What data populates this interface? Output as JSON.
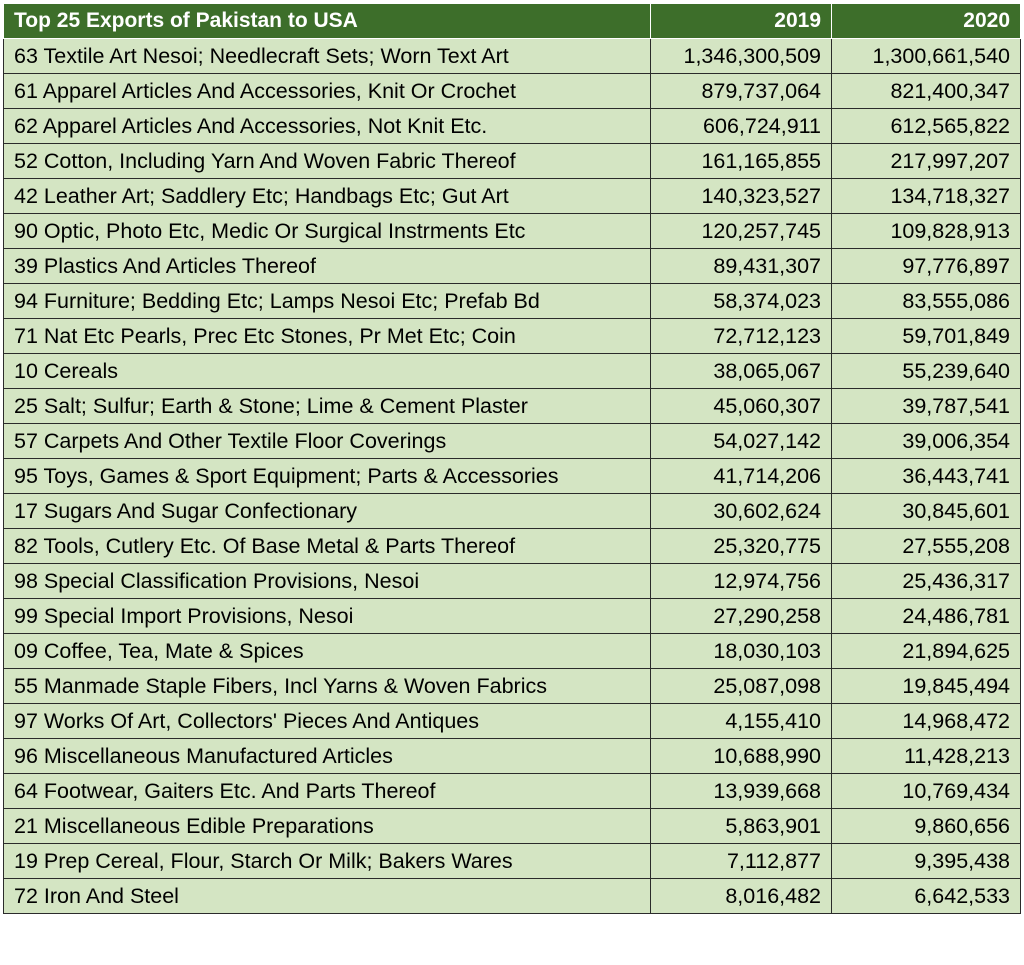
{
  "chart_data": {
    "type": "table",
    "title": "Top 25 Exports of Pakistan to USA",
    "columns": [
      "2019",
      "2020"
    ],
    "rows": [
      {
        "label": "63 Textile Art Nesoi; Needlecraft Sets; Worn Text Art",
        "v2019": "1,346,300,509",
        "v2020": "1,300,661,540"
      },
      {
        "label": "61 Apparel Articles And Accessories, Knit Or Crochet",
        "v2019": "879,737,064",
        "v2020": "821,400,347"
      },
      {
        "label": "62 Apparel Articles And Accessories, Not Knit Etc.",
        "v2019": "606,724,911",
        "v2020": "612,565,822"
      },
      {
        "label": "52 Cotton, Including Yarn And Woven Fabric Thereof",
        "v2019": "161,165,855",
        "v2020": "217,997,207"
      },
      {
        "label": "42 Leather Art; Saddlery Etc; Handbags Etc; Gut Art",
        "v2019": "140,323,527",
        "v2020": "134,718,327"
      },
      {
        "label": "90 Optic, Photo Etc, Medic Or Surgical Instrments Etc",
        "v2019": "120,257,745",
        "v2020": "109,828,913"
      },
      {
        "label": "39 Plastics And Articles Thereof",
        "v2019": "89,431,307",
        "v2020": "97,776,897"
      },
      {
        "label": "94 Furniture; Bedding Etc; Lamps Nesoi Etc; Prefab Bd",
        "v2019": "58,374,023",
        "v2020": "83,555,086"
      },
      {
        "label": "71 Nat Etc Pearls, Prec Etc Stones, Pr Met Etc; Coin",
        "v2019": "72,712,123",
        "v2020": "59,701,849"
      },
      {
        "label": "10 Cereals",
        "v2019": "38,065,067",
        "v2020": "55,239,640"
      },
      {
        "label": "25 Salt; Sulfur; Earth & Stone; Lime & Cement Plaster",
        "v2019": "45,060,307",
        "v2020": "39,787,541"
      },
      {
        "label": "57 Carpets And Other Textile Floor Coverings",
        "v2019": "54,027,142",
        "v2020": "39,006,354"
      },
      {
        "label": "95 Toys, Games & Sport Equipment; Parts & Accessories",
        "v2019": "41,714,206",
        "v2020": "36,443,741"
      },
      {
        "label": "17 Sugars And Sugar Confectionary",
        "v2019": "30,602,624",
        "v2020": "30,845,601"
      },
      {
        "label": "82 Tools, Cutlery Etc. Of Base Metal & Parts Thereof",
        "v2019": "25,320,775",
        "v2020": "27,555,208"
      },
      {
        "label": "98 Special Classification Provisions, Nesoi",
        "v2019": "12,974,756",
        "v2020": "25,436,317"
      },
      {
        "label": "99 Special Import Provisions, Nesoi",
        "v2019": "27,290,258",
        "v2020": "24,486,781"
      },
      {
        "label": "09 Coffee, Tea, Mate & Spices",
        "v2019": "18,030,103",
        "v2020": "21,894,625"
      },
      {
        "label": "55 Manmade Staple Fibers, Incl Yarns & Woven Fabrics",
        "v2019": "25,087,098",
        "v2020": "19,845,494"
      },
      {
        "label": "97 Works Of Art, Collectors' Pieces And Antiques",
        "v2019": "4,155,410",
        "v2020": "14,968,472"
      },
      {
        "label": "96 Miscellaneous Manufactured Articles",
        "v2019": "10,688,990",
        "v2020": "11,428,213"
      },
      {
        "label": "64 Footwear, Gaiters Etc. And Parts Thereof",
        "v2019": "13,939,668",
        "v2020": "10,769,434"
      },
      {
        "label": "21 Miscellaneous Edible Preparations",
        "v2019": "5,863,901",
        "v2020": "9,860,656"
      },
      {
        "label": "19 Prep Cereal, Flour, Starch Or Milk; Bakers Wares",
        "v2019": "7,112,877",
        "v2020": "9,395,438"
      },
      {
        "label": "72 Iron And Steel",
        "v2019": "8,016,482",
        "v2020": "6,642,533"
      }
    ]
  },
  "colors": {
    "header_bg": "#3d6e2a",
    "header_text": "#ffffff",
    "cell_bg": "#d4e5c3",
    "border": "#2b2b2b"
  }
}
